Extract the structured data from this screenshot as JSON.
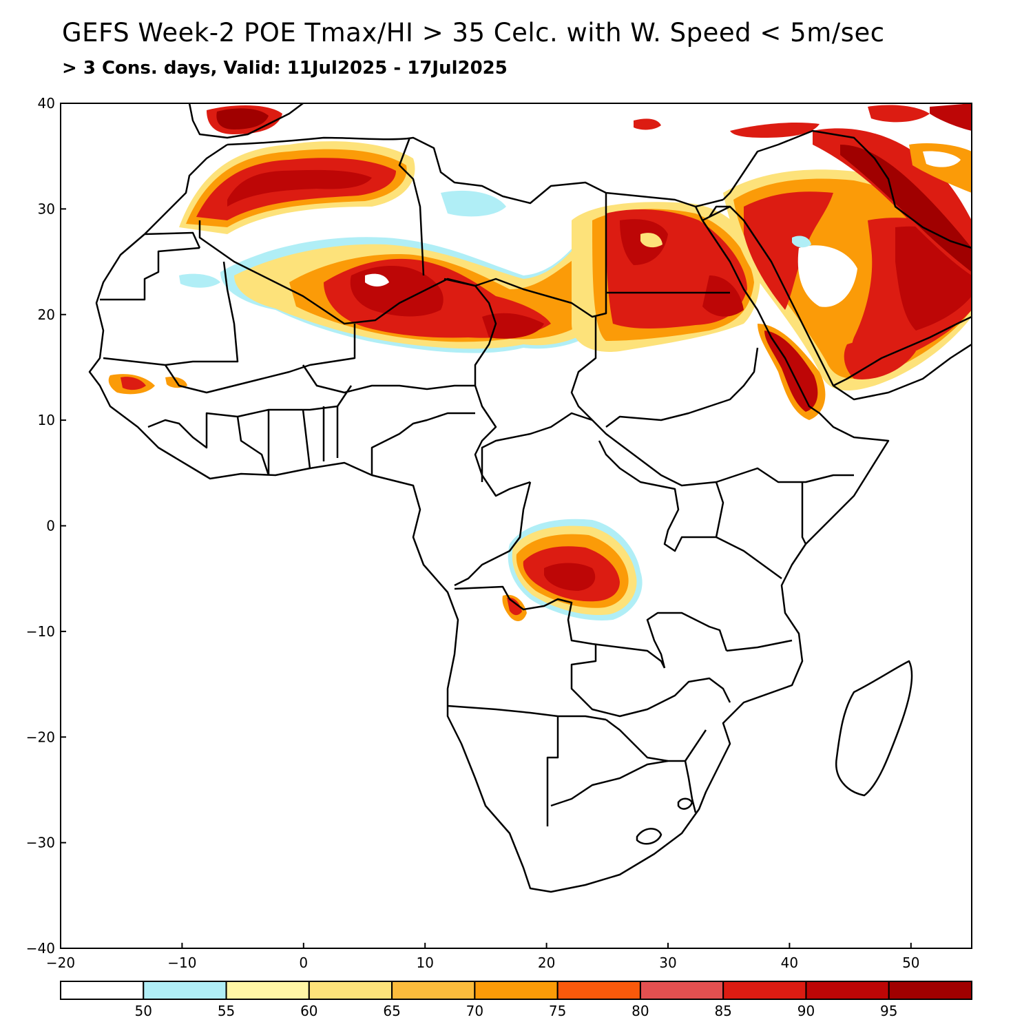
{
  "header": {
    "title": "GEFS Week-2 POE Tmax/HI > 35 Celc. with W. Speed < 5m/sec",
    "subtitle": "> 3 Cons. days, Valid: 11Jul2025 - 17Jul2025"
  },
  "map": {
    "lon_range": [
      -20,
      55
    ],
    "lat_range": [
      -40,
      40
    ],
    "lon_ticks": [
      -20,
      -10,
      0,
      10,
      20,
      30,
      40,
      50
    ],
    "lat_ticks": [
      -40,
      -30,
      -20,
      -10,
      0,
      10,
      20,
      30,
      40
    ],
    "lon_tick_labels": [
      "−20",
      "−10",
      "0",
      "10",
      "20",
      "30",
      "40",
      "50"
    ],
    "lat_tick_labels": [
      "−40",
      "−30",
      "−20",
      "−10",
      "0",
      "10",
      "20",
      "30",
      "40"
    ],
    "region": "Africa and Arabian Peninsula",
    "regions_high_probability": [
      {
        "name": "Sahel / southern Sahara (Mali-Niger-Chad)",
        "level": "90-95"
      },
      {
        "name": "Sudan / Egypt",
        "level": "85-95"
      },
      {
        "name": "Arabian Peninsula / Iraq / Gulf",
        "level": "95+"
      },
      {
        "name": "Morocco / Algeria north",
        "level": "90-95"
      },
      {
        "name": "Congo Basin / northern Angola",
        "level": "85-95"
      },
      {
        "name": "Eritrea / Red Sea coast",
        "level": "90-95"
      }
    ]
  },
  "legend": {
    "colors": [
      "#ffffff",
      "#b0eef6",
      "#fff6a6",
      "#fde27a",
      "#fbbc3c",
      "#fb9b08",
      "#f9590b",
      "#e35050",
      "#dc1c12",
      "#bd0606",
      "#a00000"
    ],
    "labels": [
      "50",
      "55",
      "60",
      "65",
      "70",
      "75",
      "80",
      "85",
      "90",
      "95"
    ]
  }
}
